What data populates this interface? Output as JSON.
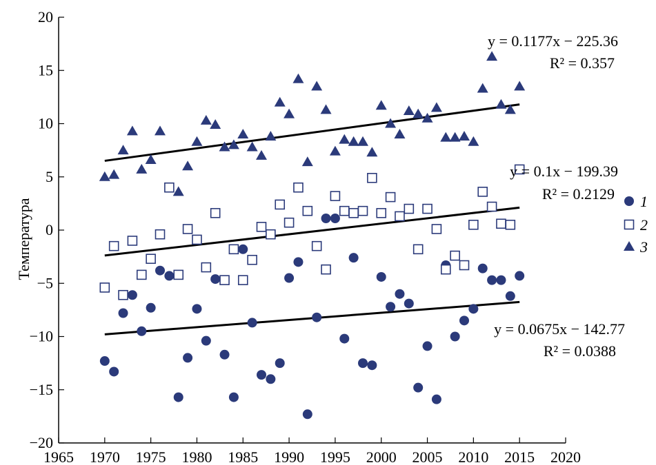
{
  "chart_data": {
    "type": "scatter",
    "title": "",
    "xlabel": "",
    "ylabel": "Температура",
    "xlim": [
      1965,
      2020
    ],
    "ylim": [
      -20,
      20
    ],
    "x_ticks": [
      1965,
      1970,
      1975,
      1980,
      1985,
      1990,
      1995,
      2000,
      2005,
      2010,
      2015,
      2020
    ],
    "y_ticks": [
      -20,
      -15,
      -10,
      -5,
      0,
      5,
      10,
      15,
      20
    ],
    "grid": false,
    "legend_position": "right",
    "colors": {
      "points": "#2b3a7a",
      "trend": "#000000"
    },
    "series": [
      {
        "name": "1",
        "marker": "filled-circle",
        "trend": {
          "slope": 0.0675,
          "intercept": -142.77,
          "x_range": [
            1970,
            2015
          ],
          "equation": "y = 0.0675x − 142.77",
          "r2": "R² = 0.0388"
        },
        "points": [
          [
            1970,
            -12.3
          ],
          [
            1971,
            -13.3
          ],
          [
            1972,
            -7.8
          ],
          [
            1973,
            -6.1
          ],
          [
            1974,
            -9.5
          ],
          [
            1975,
            -7.3
          ],
          [
            1976,
            -3.8
          ],
          [
            1977,
            -4.3
          ],
          [
            1978,
            -15.7
          ],
          [
            1979,
            -12.0
          ],
          [
            1980,
            -7.4
          ],
          [
            1981,
            -10.4
          ],
          [
            1982,
            -4.6
          ],
          [
            1983,
            -11.7
          ],
          [
            1984,
            -15.7
          ],
          [
            1985,
            -1.8
          ],
          [
            1986,
            -8.7
          ],
          [
            1987,
            -13.6
          ],
          [
            1988,
            -14.0
          ],
          [
            1989,
            -12.5
          ],
          [
            1990,
            -4.5
          ],
          [
            1991,
            -3.0
          ],
          [
            1992,
            -17.3
          ],
          [
            1993,
            -8.2
          ],
          [
            1994,
            1.1
          ],
          [
            1995,
            1.1
          ],
          [
            1996,
            -10.2
          ],
          [
            1997,
            -2.6
          ],
          [
            1998,
            -12.5
          ],
          [
            1999,
            -12.7
          ],
          [
            2000,
            -4.4
          ],
          [
            2001,
            -7.2
          ],
          [
            2002,
            -6.0
          ],
          [
            2003,
            -6.9
          ],
          [
            2004,
            -14.8
          ],
          [
            2005,
            -10.9
          ],
          [
            2006,
            -15.9
          ],
          [
            2007,
            -3.3
          ],
          [
            2008,
            -10.0
          ],
          [
            2009,
            -8.5
          ],
          [
            2010,
            -7.4
          ],
          [
            2011,
            -3.6
          ],
          [
            2012,
            -4.7
          ],
          [
            2013,
            -4.7
          ],
          [
            2014,
            -6.2
          ],
          [
            2015,
            -4.3
          ]
        ]
      },
      {
        "name": "2",
        "marker": "open-square",
        "trend": {
          "slope": 0.1,
          "intercept": -199.39,
          "x_range": [
            1970,
            2015
          ],
          "equation": "y = 0.1x − 199.39",
          "r2": "R² = 0.2129"
        },
        "points": [
          [
            1970,
            -5.4
          ],
          [
            1971,
            -1.5
          ],
          [
            1972,
            -6.1
          ],
          [
            1973,
            -1.0
          ],
          [
            1974,
            -4.2
          ],
          [
            1975,
            -2.7
          ],
          [
            1976,
            -0.4
          ],
          [
            1977,
            4.0
          ],
          [
            1978,
            -4.2
          ],
          [
            1979,
            0.1
          ],
          [
            1980,
            -0.9
          ],
          [
            1981,
            -3.5
          ],
          [
            1982,
            1.6
          ],
          [
            1983,
            -4.7
          ],
          [
            1984,
            -1.8
          ],
          [
            1985,
            -4.7
          ],
          [
            1986,
            -2.8
          ],
          [
            1987,
            0.3
          ],
          [
            1988,
            -0.4
          ],
          [
            1989,
            2.4
          ],
          [
            1990,
            0.7
          ],
          [
            1991,
            4.0
          ],
          [
            1992,
            1.8
          ],
          [
            1993,
            -1.5
          ],
          [
            1994,
            -3.7
          ],
          [
            1995,
            3.2
          ],
          [
            1996,
            1.8
          ],
          [
            1997,
            1.6
          ],
          [
            1998,
            1.8
          ],
          [
            1999,
            4.9
          ],
          [
            2000,
            1.6
          ],
          [
            2001,
            3.1
          ],
          [
            2002,
            1.3
          ],
          [
            2003,
            2.0
          ],
          [
            2004,
            -1.8
          ],
          [
            2005,
            2.0
          ],
          [
            2006,
            0.1
          ],
          [
            2007,
            -3.7
          ],
          [
            2008,
            -2.4
          ],
          [
            2009,
            -3.3
          ],
          [
            2010,
            0.5
          ],
          [
            2011,
            3.6
          ],
          [
            2012,
            2.2
          ],
          [
            2013,
            0.6
          ],
          [
            2014,
            0.5
          ],
          [
            2015,
            5.7
          ]
        ]
      },
      {
        "name": "3",
        "marker": "filled-triangle",
        "trend": {
          "slope": 0.1177,
          "intercept": -225.36,
          "x_range": [
            1970,
            2015
          ],
          "equation": "y = 0.1177x − 225.36",
          "r2": "R² = 0.357"
        },
        "points": [
          [
            1970,
            5.0
          ],
          [
            1971,
            5.2
          ],
          [
            1972,
            7.5
          ],
          [
            1973,
            9.3
          ],
          [
            1974,
            5.7
          ],
          [
            1975,
            6.6
          ],
          [
            1976,
            9.3
          ],
          [
            1978,
            3.6
          ],
          [
            1979,
            6.0
          ],
          [
            1980,
            8.3
          ],
          [
            1981,
            10.3
          ],
          [
            1982,
            9.9
          ],
          [
            1983,
            7.8
          ],
          [
            1984,
            8.0
          ],
          [
            1985,
            9.0
          ],
          [
            1986,
            7.8
          ],
          [
            1987,
            7.0
          ],
          [
            1988,
            8.8
          ],
          [
            1989,
            12.0
          ],
          [
            1990,
            10.9
          ],
          [
            1991,
            14.2
          ],
          [
            1992,
            6.4
          ],
          [
            1993,
            13.5
          ],
          [
            1994,
            11.3
          ],
          [
            1995,
            7.4
          ],
          [
            1996,
            8.5
          ],
          [
            1997,
            8.3
          ],
          [
            1998,
            8.3
          ],
          [
            1999,
            7.3
          ],
          [
            2000,
            11.7
          ],
          [
            2001,
            10.0
          ],
          [
            2002,
            9.0
          ],
          [
            2003,
            11.2
          ],
          [
            2004,
            10.9
          ],
          [
            2005,
            10.5
          ],
          [
            2006,
            11.5
          ],
          [
            2007,
            8.7
          ],
          [
            2008,
            8.7
          ],
          [
            2009,
            8.8
          ],
          [
            2010,
            8.3
          ],
          [
            2011,
            13.3
          ],
          [
            2012,
            16.3
          ],
          [
            2013,
            11.8
          ],
          [
            2014,
            11.3
          ],
          [
            2015,
            13.5
          ]
        ]
      }
    ]
  }
}
